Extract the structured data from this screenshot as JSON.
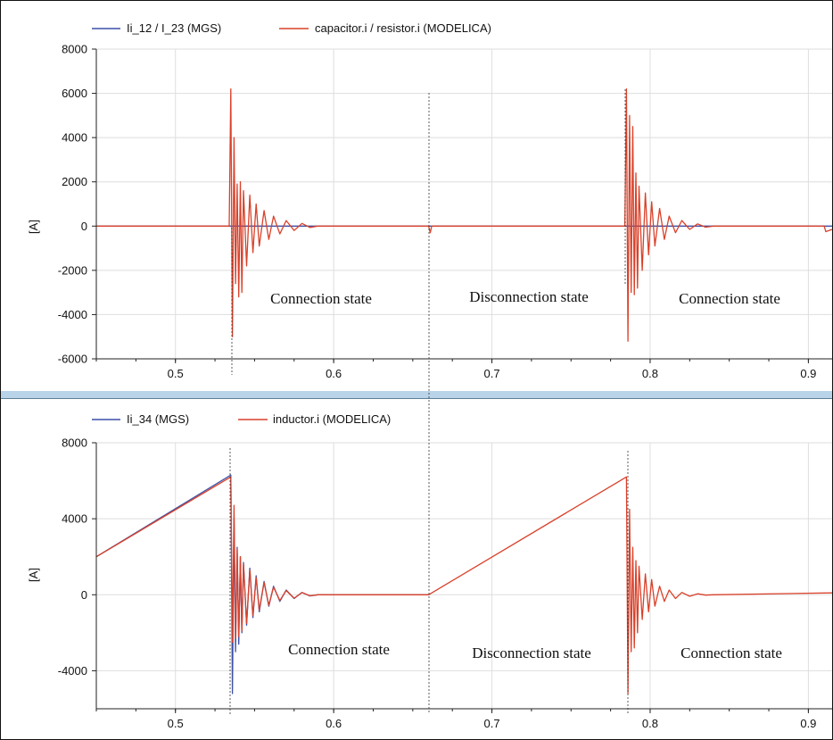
{
  "colors": {
    "mgs": "#3b4fa8",
    "modelica": "#d9412a",
    "grid": "#dedede",
    "splitter": "#b9d3e8"
  },
  "chart_data": [
    {
      "type": "line",
      "title": "",
      "xlabel": "",
      "ylabel": "[A]",
      "xlim": [
        0.45,
        0.915
      ],
      "ylim": [
        -6000,
        8000
      ],
      "xticks": [
        "0.5",
        "0.6",
        "0.7",
        "0.8",
        "0.9"
      ],
      "yticks": [
        "8000",
        "6000",
        "4000",
        "2000",
        "0",
        "-2000",
        "-4000",
        "-6000"
      ],
      "grid": true,
      "legend_position": "top-left",
      "series": [
        {
          "name": "Ii_12 / I_23 (MGS)",
          "color": "#3b4fa8",
          "x": [
            0.45,
            0.535,
            0.6,
            0.66,
            0.785,
            0.915
          ],
          "y": [
            0,
            0,
            0,
            0,
            0,
            0
          ]
        },
        {
          "name": "capacitor.i / resistor.i (MODELICA)",
          "color": "#d9412a",
          "x": [
            0.45,
            0.534,
            0.535,
            0.536,
            0.537,
            0.538,
            0.539,
            0.54,
            0.541,
            0.542,
            0.543,
            0.545,
            0.547,
            0.549,
            0.551,
            0.553,
            0.556,
            0.559,
            0.562,
            0.566,
            0.57,
            0.575,
            0.58,
            0.585,
            0.59,
            0.66,
            0.661,
            0.662,
            0.784,
            0.785,
            0.786,
            0.787,
            0.788,
            0.789,
            0.79,
            0.791,
            0.792,
            0.793,
            0.795,
            0.797,
            0.799,
            0.801,
            0.803,
            0.806,
            0.809,
            0.812,
            0.816,
            0.82,
            0.825,
            0.83,
            0.835,
            0.84,
            0.91,
            0.911,
            0.915
          ],
          "y": [
            0,
            0,
            6200,
            -5000,
            4000,
            -2600,
            1900,
            -3200,
            2000,
            -3000,
            1600,
            -1800,
            1400,
            -1200,
            1000,
            -900,
            700,
            -600,
            450,
            -350,
            250,
            -200,
            120,
            -60,
            0,
            0,
            -300,
            0,
            0,
            6200,
            -5200,
            5000,
            -3000,
            4500,
            -3100,
            2400,
            -2800,
            1800,
            -2000,
            1500,
            -1300,
            1100,
            -900,
            800,
            -600,
            450,
            -300,
            250,
            -150,
            100,
            -50,
            0,
            0,
            -250,
            -150
          ]
        }
      ],
      "annotations": [
        "Connection state",
        "Disconnection state",
        "Connection state"
      ]
    },
    {
      "type": "line",
      "title": "",
      "xlabel": "",
      "ylabel": "[A]",
      "xlim": [
        0.45,
        0.915
      ],
      "ylim": [
        -6000,
        8000
      ],
      "xticks": [
        "0.5",
        "0.6",
        "0.7",
        "0.8",
        "0.9"
      ],
      "yticks": [
        "8000",
        "4000",
        "0",
        "-4000"
      ],
      "grid": true,
      "legend_position": "top-left",
      "series": [
        {
          "name": "Ii_34 (MGS)",
          "color": "#3b4fa8",
          "x": [
            0.45,
            0.535,
            0.536,
            0.537,
            0.538,
            0.539,
            0.54,
            0.541,
            0.542,
            0.543,
            0.545,
            0.547,
            0.549,
            0.551,
            0.553,
            0.556,
            0.559,
            0.562,
            0.566,
            0.57,
            0.575,
            0.58,
            0.585,
            0.59,
            0.66
          ],
          "y": [
            2000,
            6300,
            -5200,
            4000,
            -3000,
            2500,
            -2600,
            2000,
            -2000,
            1700,
            -1600,
            1400,
            -1200,
            1000,
            -900,
            700,
            -600,
            450,
            -350,
            250,
            -200,
            120,
            -60,
            0,
            0
          ]
        },
        {
          "name": "inductor.i (MODELICA)",
          "color": "#d9412a",
          "x": [
            0.45,
            0.535,
            0.536,
            0.537,
            0.538,
            0.539,
            0.54,
            0.541,
            0.542,
            0.543,
            0.545,
            0.547,
            0.549,
            0.551,
            0.553,
            0.556,
            0.559,
            0.562,
            0.566,
            0.57,
            0.575,
            0.58,
            0.585,
            0.59,
            0.66,
            0.785,
            0.786,
            0.787,
            0.788,
            0.789,
            0.79,
            0.791,
            0.792,
            0.793,
            0.795,
            0.797,
            0.799,
            0.801,
            0.803,
            0.806,
            0.809,
            0.812,
            0.816,
            0.82,
            0.825,
            0.83,
            0.835,
            0.84,
            0.915
          ],
          "y": [
            2000,
            6200,
            -2500,
            4700,
            -2300,
            2400,
            -2200,
            2000,
            -1900,
            1600,
            -1500,
            1300,
            -1100,
            900,
            -800,
            650,
            -550,
            400,
            -300,
            220,
            -180,
            110,
            -50,
            0,
            0,
            6200,
            -5200,
            4500,
            -3000,
            2500,
            -2800,
            1800,
            -2000,
            1500,
            -1300,
            1100,
            -900,
            800,
            -600,
            450,
            -350,
            250,
            -200,
            120,
            -80,
            50,
            -20,
            0,
            100
          ]
        }
      ],
      "annotations": [
        "Connection state",
        "Disconnection state",
        "Connection state"
      ]
    }
  ]
}
